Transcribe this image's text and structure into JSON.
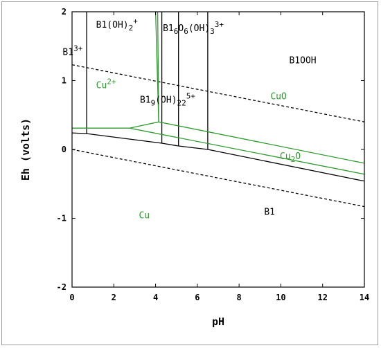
{
  "chart_data": {
    "type": "line",
    "title": "",
    "xlabel": "pH",
    "ylabel": "Eh (volts)",
    "xlim": [
      0,
      14
    ],
    "ylim": [
      -2,
      2
    ],
    "xticks": [
      "0",
      "2",
      "4",
      "6",
      "8",
      "10",
      "12",
      "14"
    ],
    "yticks": [
      "-2",
      "-1",
      "0",
      "1",
      "2"
    ],
    "grid": false,
    "series": [
      {
        "color": "#000000",
        "style": "dashed",
        "points": [
          [
            0,
            1.23
          ],
          [
            14,
            0.4
          ]
        ]
      },
      {
        "color": "#000000",
        "style": "dashed",
        "points": [
          [
            0,
            0.0
          ],
          [
            14,
            -0.83
          ]
        ]
      },
      {
        "color": "#000000",
        "style": "solid",
        "points": [
          [
            0,
            0.24
          ],
          [
            0.7,
            0.23
          ],
          [
            4.3,
            0.09
          ],
          [
            5.1,
            0.05
          ],
          [
            6.5,
            0.0
          ],
          [
            14,
            -0.46
          ]
        ]
      },
      {
        "color": "#000000",
        "style": "solid",
        "points": [
          [
            0.7,
            2.0
          ],
          [
            0.7,
            0.23
          ]
        ]
      },
      {
        "color": "#000000",
        "style": "solid",
        "points": [
          [
            4.3,
            2.0
          ],
          [
            4.3,
            0.09
          ]
        ]
      },
      {
        "color": "#000000",
        "style": "solid",
        "points": [
          [
            5.1,
            2.0
          ],
          [
            5.1,
            0.05
          ]
        ]
      },
      {
        "color": "#000000",
        "style": "solid",
        "points": [
          [
            6.5,
            2.0
          ],
          [
            6.5,
            0.0
          ]
        ]
      },
      {
        "color": "#2e9a2e",
        "style": "solid",
        "points": [
          [
            0,
            0.31
          ],
          [
            2.75,
            0.31
          ],
          [
            14,
            -0.36
          ]
        ]
      },
      {
        "color": "#2e9a2e",
        "style": "solid",
        "points": [
          [
            2.75,
            0.31
          ],
          [
            4.15,
            0.4
          ],
          [
            14,
            -0.2
          ]
        ]
      },
      {
        "color": "#2e9a2e",
        "style": "solid",
        "points": [
          [
            4.0,
            2.0
          ],
          [
            4.15,
            0.4
          ]
        ]
      },
      {
        "color": "#2e9a2e",
        "style": "solid",
        "points": [
          [
            4.1,
            2.0
          ],
          [
            4.15,
            0.4
          ]
        ]
      }
    ],
    "annotations": [
      {
        "x": 1.15,
        "y": 1.77,
        "color": "#000000",
        "parts": [
          [
            "B1(OH)",
            ""
          ],
          [
            "2",
            "sub"
          ],
          [
            "+",
            "sup"
          ]
        ]
      },
      {
        "x": 4.35,
        "y": 1.72,
        "color": "#000000",
        "parts": [
          [
            "B1",
            ""
          ],
          [
            "6",
            "sub"
          ],
          [
            "O",
            ""
          ],
          [
            "6",
            "sub"
          ],
          [
            "(OH)",
            ""
          ],
          [
            "3",
            "sub"
          ],
          [
            "3+",
            "sup"
          ]
        ]
      },
      {
        "x": -0.45,
        "y": 1.37,
        "color": "#000000",
        "parts": [
          [
            "B1",
            ""
          ],
          [
            "3+",
            "sup"
          ]
        ]
      },
      {
        "x": 10.4,
        "y": 1.25,
        "color": "#000000",
        "parts": [
          [
            "B1OOH",
            ""
          ]
        ]
      },
      {
        "x": 1.15,
        "y": 0.89,
        "color": "#2e9a2e",
        "parts": [
          [
            "Cu",
            ""
          ],
          [
            "2+",
            "sup"
          ]
        ]
      },
      {
        "x": 9.5,
        "y": 0.73,
        "color": "#2e9a2e",
        "parts": [
          [
            "CuO",
            ""
          ]
        ]
      },
      {
        "x": 3.25,
        "y": 0.68,
        "color": "#000000",
        "parts": [
          [
            "B1",
            ""
          ],
          [
            "9",
            "sub"
          ],
          [
            "(OH)",
            ""
          ],
          [
            "22",
            "sub"
          ],
          [
            "5+",
            "sup"
          ]
        ]
      },
      {
        "x": 9.95,
        "y": -0.14,
        "color": "#2e9a2e",
        "parts": [
          [
            "Cu",
            ""
          ],
          [
            "2",
            "sub"
          ],
          [
            "O",
            ""
          ]
        ]
      },
      {
        "x": 3.2,
        "y": -1.0,
        "color": "#2e9a2e",
        "parts": [
          [
            "Cu",
            ""
          ]
        ]
      },
      {
        "x": 9.2,
        "y": -0.95,
        "color": "#000000",
        "parts": [
          [
            "B1",
            ""
          ]
        ]
      }
    ]
  }
}
